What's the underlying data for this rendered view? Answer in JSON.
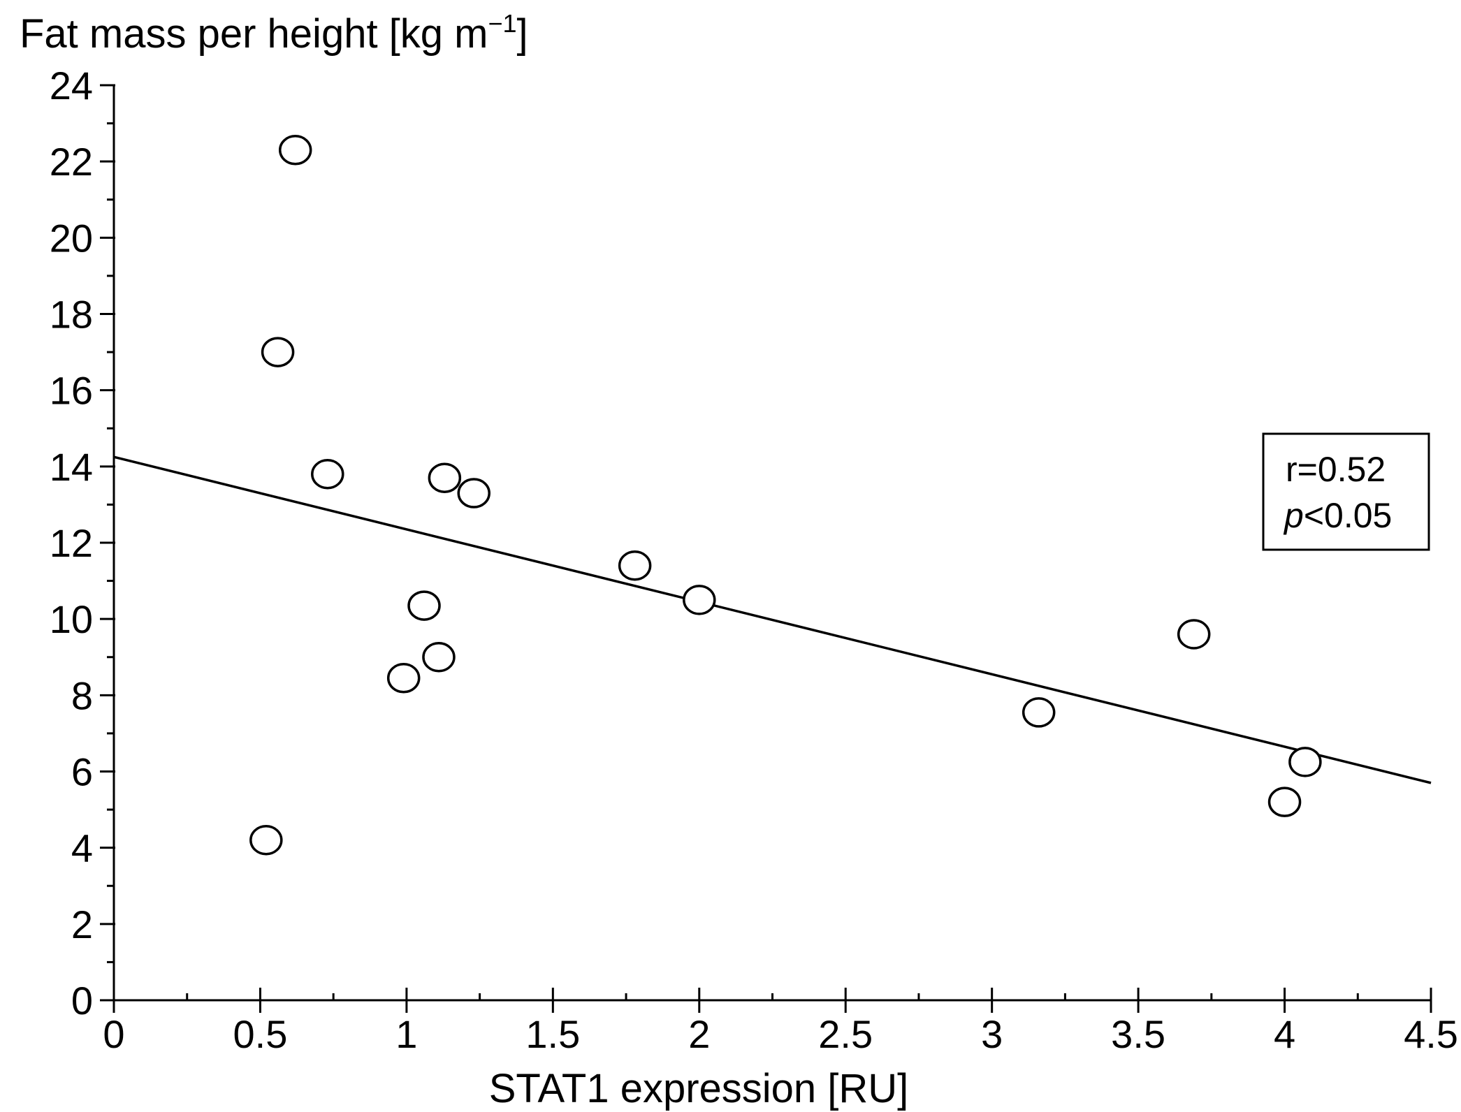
{
  "chart_data": {
    "type": "scatter",
    "title": "",
    "ylabel": {
      "text": "Fat mass per height [kg m",
      "superscript": "−1",
      "suffix": "]"
    },
    "xlabel": "STAT1 expression [RU]",
    "xlim": [
      0,
      4.5
    ],
    "ylim": [
      0,
      24
    ],
    "x_ticks": [
      0,
      0.5,
      1,
      1.5,
      2,
      2.5,
      3,
      3.5,
      4,
      4.5
    ],
    "x_tick_labels": [
      "0",
      "0.5",
      "1",
      "1.5",
      "2",
      "2.5",
      "3",
      "3.5",
      "4",
      "4.5"
    ],
    "x_minor_step": 0.25,
    "y_ticks": [
      0,
      2,
      4,
      6,
      8,
      10,
      12,
      14,
      16,
      18,
      20,
      22,
      24
    ],
    "y_tick_labels": [
      "0",
      "2",
      "4",
      "6",
      "8",
      "10",
      "12",
      "14",
      "16",
      "18",
      "20",
      "22",
      "24"
    ],
    "y_minor_step": 1,
    "points": [
      {
        "x": 0.62,
        "y": 22.3
      },
      {
        "x": 0.56,
        "y": 17.0
      },
      {
        "x": 0.73,
        "y": 13.8
      },
      {
        "x": 1.13,
        "y": 13.7
      },
      {
        "x": 1.23,
        "y": 13.3
      },
      {
        "x": 1.78,
        "y": 11.4
      },
      {
        "x": 2.0,
        "y": 10.5
      },
      {
        "x": 1.06,
        "y": 10.35
      },
      {
        "x": 1.11,
        "y": 9.0
      },
      {
        "x": 0.99,
        "y": 8.45
      },
      {
        "x": 0.52,
        "y": 4.2
      },
      {
        "x": 3.69,
        "y": 9.6
      },
      {
        "x": 3.16,
        "y": 7.55
      },
      {
        "x": 4.07,
        "y": 6.25
      },
      {
        "x": 4.0,
        "y": 5.2
      }
    ],
    "regression_line": {
      "x": [
        0,
        4.5
      ],
      "y": [
        14.25,
        5.7
      ]
    },
    "stats": {
      "r_text": "r=0.52",
      "p_symbol": "p",
      "p_rest": "<0.05"
    },
    "legend_position": "right",
    "grid": false
  }
}
